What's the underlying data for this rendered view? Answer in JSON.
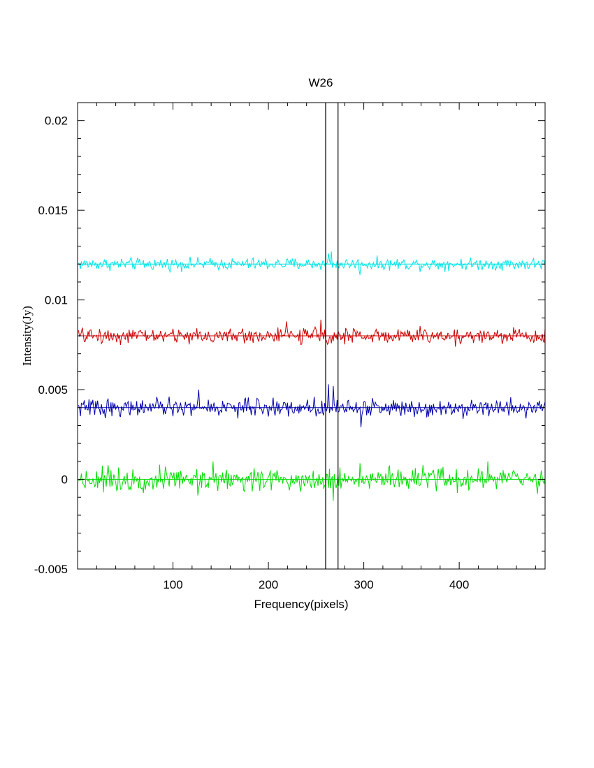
{
  "chart_data": {
    "type": "line",
    "title": "W26",
    "xlabel": "Frequency(pixels)",
    "ylabel": "Intensity(Jy)",
    "xlim": [
      0,
      490
    ],
    "ylim": [
      -0.005,
      0.021
    ],
    "x_ticks": [
      100,
      200,
      300,
      400
    ],
    "x_tick_labels": [
      "100",
      "200",
      "300",
      "400"
    ],
    "y_ticks": [
      -0.005,
      0,
      0.005,
      0.01,
      0.015,
      0.02
    ],
    "y_tick_labels": [
      "-0.005",
      "0",
      "0.005",
      "0.01",
      "0.015",
      "0.02"
    ],
    "vertical_lines": [
      260,
      273
    ],
    "series": [
      {
        "color": "#00e5e5",
        "baseline": 0.012,
        "noise_amplitude": 0.00022,
        "features": [
          {
            "x": 263,
            "value": 0.0126
          },
          {
            "x": 266,
            "value": 0.0127
          },
          {
            "x": 296,
            "value": 0.0114
          }
        ]
      },
      {
        "color": "#cc0000",
        "baseline": 0.008,
        "noise_amplitude": 0.00028,
        "features": [
          {
            "x": 255,
            "value": 0.0089
          },
          {
            "x": 219,
            "value": 0.0088
          },
          {
            "x": 396,
            "value": 0.0074
          }
        ]
      },
      {
        "color": "#0000aa",
        "baseline": 0.004,
        "noise_amplitude": 0.00032,
        "features": [
          {
            "x": 127,
            "value": 0.005
          },
          {
            "x": 263,
            "value": 0.0053
          },
          {
            "x": 268,
            "value": 0.0052
          },
          {
            "x": 297,
            "value": 0.0029
          }
        ]
      },
      {
        "color": "#00dd00",
        "baseline": 0.0,
        "noise_amplitude": 0.00042,
        "features": [
          {
            "x": 142,
            "value": 0.001
          },
          {
            "x": 126,
            "value": -0.0009
          },
          {
            "x": 268,
            "value": -0.0012
          },
          {
            "x": 296,
            "value": 0.0009
          },
          {
            "x": 430,
            "value": 0.001
          }
        ]
      }
    ]
  }
}
